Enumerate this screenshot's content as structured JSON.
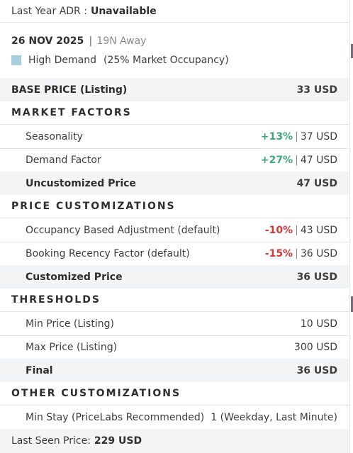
{
  "header": {
    "adr_label": "Last Year ADR :",
    "adr_value": "Unavailable"
  },
  "date_block": {
    "date": "26 NOV 2025",
    "separator": "|",
    "away": "19N Away",
    "demand_label": "High Demand",
    "demand_detail": "(25% Market Occupancy)",
    "demand_color": "#a7cde1"
  },
  "base_price": {
    "label": "BASE PRICE (Listing)",
    "value": "33 USD"
  },
  "market_factors": {
    "title": "MARKET FACTORS",
    "items": [
      {
        "label": "Seasonality",
        "change": "+13%",
        "value": "37 USD"
      },
      {
        "label": "Demand Factor",
        "change": "+27%",
        "value": "47 USD"
      }
    ],
    "subtotal": {
      "label": "Uncustomized Price",
      "value": "47 USD"
    }
  },
  "price_customizations": {
    "title": "PRICE CUSTOMIZATIONS",
    "items": [
      {
        "label": "Occupancy Based Adjustment (default)",
        "change": "-10%",
        "value": "43 USD"
      },
      {
        "label": "Booking Recency Factor (default)",
        "change": "-15%",
        "value": "36 USD"
      }
    ],
    "subtotal": {
      "label": "Customized Price",
      "value": "36 USD"
    }
  },
  "thresholds": {
    "title": "THRESHOLDS",
    "items": [
      {
        "label": "Min Price (Listing)",
        "value": "10 USD"
      },
      {
        "label": "Max Price (Listing)",
        "value": "300 USD"
      }
    ],
    "final": {
      "label": "Final",
      "value": "36 USD"
    }
  },
  "other_customizations": {
    "title": "OTHER CUSTOMIZATIONS",
    "items": [
      {
        "label": "Min Stay (PriceLabs Recommended)",
        "value": "1 (Weekday, Last Minute)"
      }
    ]
  },
  "footer": {
    "last_seen_label": "Last Seen Price:",
    "last_seen_value": "229 USD"
  },
  "colors": {
    "positive": "#3aa87a",
    "negative": "#d93636",
    "row_highlight": "#f3f4f5"
  }
}
